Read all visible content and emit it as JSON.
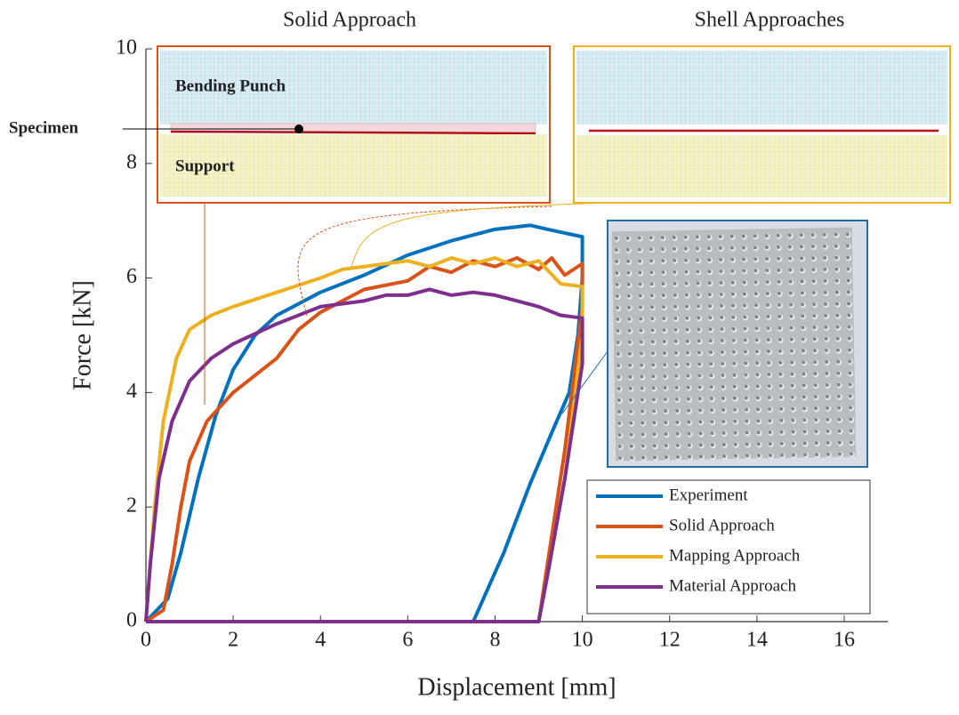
{
  "chart_data": {
    "type": "line",
    "xlabel": "Displacement [mm]",
    "ylabel": "Force [kN]",
    "xlim": [
      0,
      17
    ],
    "ylim": [
      0,
      10
    ],
    "xticks": [
      0,
      2,
      4,
      6,
      8,
      10,
      12,
      14,
      16
    ],
    "yticks": [
      0,
      2,
      4,
      6,
      8,
      10
    ],
    "annotations": [
      "Solid Approach",
      "Shell Approaches",
      "Bending Punch",
      "Support",
      "Specimen"
    ],
    "series": [
      {
        "name": "Experiment",
        "color": "#0072BD",
        "x": [
          0,
          0.5,
          0.8,
          1.2,
          1.6,
          2,
          2.5,
          3,
          4,
          5,
          6,
          7,
          8,
          8.8,
          9.2,
          10,
          10,
          9.9,
          9.7,
          9.3,
          8.8,
          8.2,
          7.5
        ],
        "values": [
          0,
          0.4,
          1.2,
          2.5,
          3.6,
          4.4,
          5.0,
          5.35,
          5.75,
          6.05,
          6.4,
          6.65,
          6.85,
          6.92,
          6.85,
          6.72,
          6,
          5,
          4,
          3.3,
          2.4,
          1.2,
          0
        ]
      },
      {
        "name": "Solid Approach",
        "color": "#D95319",
        "x": [
          0,
          0.4,
          0.6,
          0.8,
          1,
          1.4,
          2,
          3,
          3.5,
          4,
          5,
          6,
          6.5,
          7,
          7.5,
          8,
          8.5,
          9,
          9.3,
          9.6,
          10,
          10,
          9.6,
          9.3,
          9
        ],
        "values": [
          0,
          0.2,
          1,
          2,
          2.8,
          3.5,
          4,
          4.6,
          5.1,
          5.4,
          5.8,
          5.95,
          6.2,
          6.1,
          6.3,
          6.2,
          6.35,
          6.15,
          6.35,
          6.05,
          6.25,
          5.5,
          3,
          1.5,
          0
        ]
      },
      {
        "name": "Mapping Approach",
        "color": "#EDB120",
        "x": [
          0,
          0.2,
          0.4,
          0.7,
          1,
          1.5,
          2,
          3,
          4,
          4.5,
          5,
          5.5,
          6,
          6.5,
          7,
          7.5,
          8,
          8.5,
          9,
          9.5,
          10,
          10,
          9.6,
          9.2,
          9
        ],
        "values": [
          0,
          2,
          3.5,
          4.6,
          5.1,
          5.35,
          5.5,
          5.75,
          6,
          6.15,
          6.2,
          6.25,
          6.3,
          6.2,
          6.35,
          6.25,
          6.35,
          6.2,
          6.3,
          5.9,
          5.85,
          5,
          2.5,
          0.8,
          0
        ]
      },
      {
        "name": "Material Approach",
        "color": "#7E2F8E",
        "x": [
          0,
          0.1,
          0.3,
          0.6,
          1,
          1.5,
          2,
          3,
          4,
          5,
          5.5,
          6,
          6.5,
          7,
          7.5,
          8,
          8.5,
          9,
          9.5,
          10,
          10,
          9.6,
          9.2,
          9,
          0
        ],
        "values": [
          0,
          1,
          2.5,
          3.5,
          4.2,
          4.6,
          4.85,
          5.2,
          5.5,
          5.6,
          5.7,
          5.7,
          5.8,
          5.7,
          5.75,
          5.7,
          5.6,
          5.5,
          5.35,
          5.3,
          4.5,
          2.5,
          0.8,
          0,
          0
        ]
      }
    ]
  }
}
